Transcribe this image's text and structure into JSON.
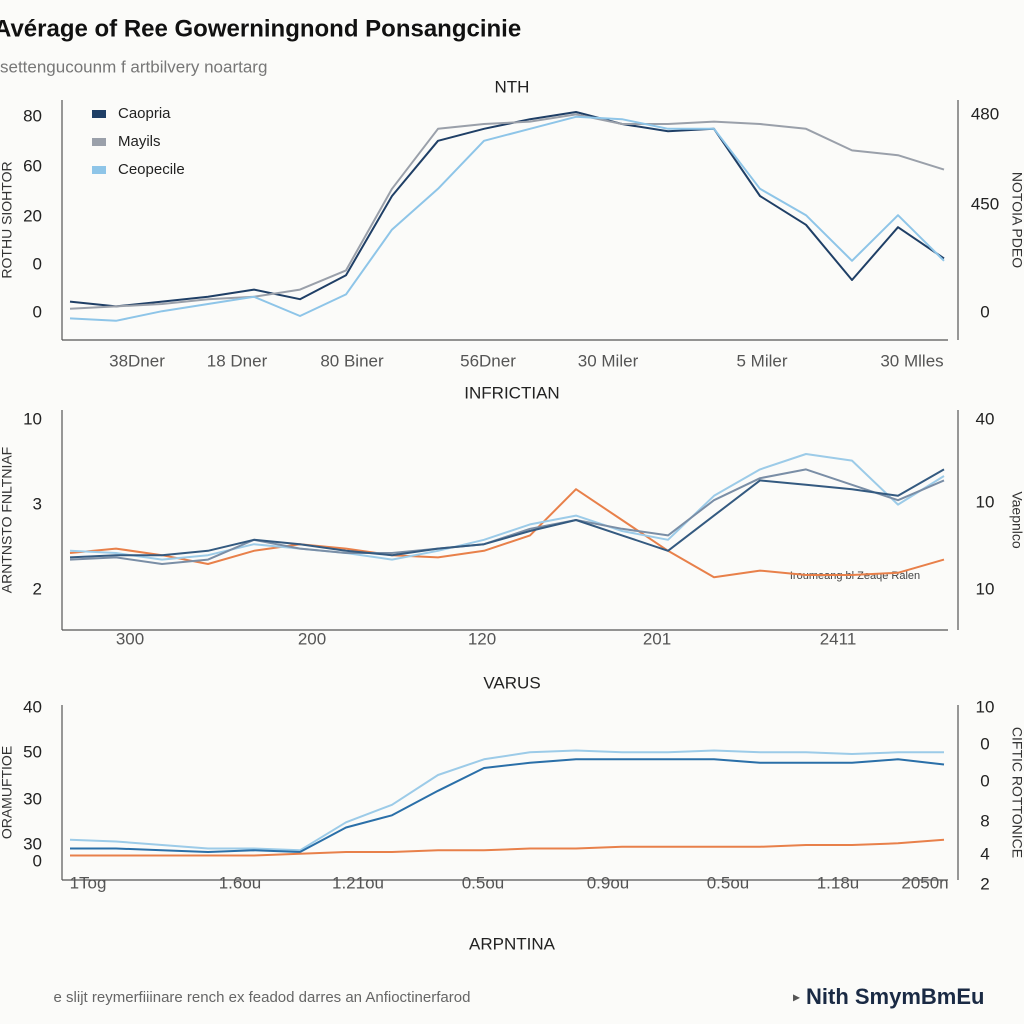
{
  "header": {
    "title": "Avérage of Ree Gowerningnond Ponsangcinie",
    "subtitle": "settengucounm f artbilvery noartarg"
  },
  "footer": {
    "note": "e slijt reymerfiiinare rench ex feadod darres an Anfioctinerfarod",
    "brand": "Nith SmymBmEu"
  },
  "chart_data": [
    {
      "type": "line",
      "title": "NTH",
      "ylabel": "ROTHU SIOHTOR",
      "y2label": "NOTOIA PDEO",
      "ylim": [
        0,
        100
      ],
      "y_labels": [
        "80",
        "60",
        "20",
        "0",
        "0"
      ],
      "y2_labels": [
        "480",
        "450",
        "0"
      ],
      "x_labels": [
        "38Dner",
        "18 Dner",
        "80 Biner",
        "56Dner",
        "30 Miler",
        "5 Miler",
        "30 Mlles"
      ],
      "legend": "top-left",
      "series": [
        {
          "name": "Caopria",
          "color": "#1f3f66",
          "values": [
            16,
            14,
            16,
            18,
            21,
            17,
            27,
            60,
            83,
            88,
            92,
            95,
            90,
            87,
            88,
            60,
            48,
            25,
            47,
            34
          ]
        },
        {
          "name": "Mayils",
          "color": "#9aa0aa",
          "values": [
            13,
            14,
            15,
            17,
            18,
            21,
            29,
            63,
            88,
            90,
            91,
            94,
            90,
            90,
            91,
            90,
            88,
            79,
            77,
            71
          ]
        },
        {
          "name": "Ceopecile",
          "color": "#8ec5e8",
          "values": [
            9,
            8,
            12,
            15,
            18,
            10,
            19,
            46,
            63,
            83,
            88,
            93,
            92,
            88,
            88,
            63,
            52,
            33,
            52,
            33
          ]
        }
      ]
    },
    {
      "type": "line",
      "title": "INFRICTIAN",
      "ylabel": "ARNTNSTO FNLTNIAF",
      "y2label": "Vaepnlco",
      "ylim": [
        0,
        100
      ],
      "y_labels": [
        "10",
        "3",
        "2"
      ],
      "y2_labels": [
        "40",
        "10",
        "10"
      ],
      "x_labels": [
        "300",
        "200",
        "120",
        "201",
        "2411"
      ],
      "annotation": "Iroumeang bl Zeaqe Ralen",
      "series": [
        {
          "color": "#e8804a",
          "values": [
            35,
            37,
            34,
            30,
            36,
            39,
            37,
            34,
            33,
            36,
            43,
            64,
            50,
            36,
            24,
            27,
            25,
            25,
            26,
            32
          ]
        },
        {
          "color": "#9ccbe8",
          "values": [
            36,
            35,
            32,
            34,
            39,
            37,
            35,
            32,
            36,
            41,
            48,
            52,
            45,
            41,
            61,
            73,
            80,
            77,
            57,
            70
          ]
        },
        {
          "color": "#7a8ea6",
          "values": [
            32,
            33,
            30,
            32,
            41,
            37,
            35,
            35,
            37,
            39,
            46,
            50,
            46,
            43,
            59,
            69,
            73,
            66,
            59,
            68
          ]
        },
        {
          "color": "#345a80",
          "values": [
            33,
            34,
            34,
            36,
            41,
            39,
            36,
            34,
            37,
            39,
            45,
            50,
            43,
            36,
            52,
            68,
            66,
            64,
            61,
            73
          ]
        }
      ]
    },
    {
      "type": "line",
      "title": "VARUS",
      "ylabel": "ORAMUFTIOE",
      "y2label": "CIFTIC ROTTONICE",
      "xlabel": "ARPNTINA",
      "ylim": [
        0,
        100
      ],
      "y_labels": [
        "40",
        "50",
        "30",
        "30",
        "0"
      ],
      "y2_labels": [
        "10",
        "0",
        "0",
        "8",
        "4",
        "2"
      ],
      "x_labels": [
        "1Tog",
        "1.6ou",
        "1.21ou",
        "0.5ou",
        "0.9ou",
        "0.5ou",
        "1.18u",
        "2050n"
      ],
      "series": [
        {
          "color": "#9ccbe8",
          "values": [
            23,
            22,
            20,
            18,
            18,
            17,
            33,
            43,
            60,
            69,
            73,
            74,
            73,
            73,
            74,
            73,
            73,
            72,
            73,
            73
          ]
        },
        {
          "color": "#2a6fa8",
          "values": [
            18,
            18,
            17,
            16,
            17,
            16,
            30,
            37,
            51,
            64,
            67,
            69,
            69,
            69,
            69,
            67,
            67,
            67,
            69,
            66
          ]
        },
        {
          "color": "#e8804a",
          "values": [
            14,
            14,
            14,
            14,
            14,
            15,
            16,
            16,
            17,
            17,
            18,
            18,
            19,
            19,
            19,
            19,
            20,
            20,
            21,
            23
          ]
        }
      ]
    }
  ]
}
